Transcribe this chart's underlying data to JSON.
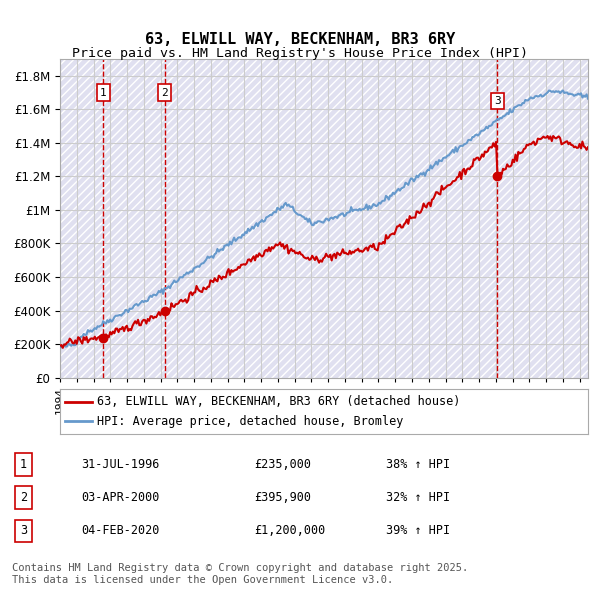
{
  "title": "63, ELWILL WAY, BECKENHAM, BR3 6RY",
  "subtitle": "Price paid vs. HM Land Registry's House Price Index (HPI)",
  "ylabel_ticks": [
    "£0",
    "£200K",
    "£400K",
    "£600K",
    "£800K",
    "£1M",
    "£1.2M",
    "£1.4M",
    "£1.6M",
    "£1.8M"
  ],
  "ytick_values": [
    0,
    200000,
    400000,
    600000,
    800000,
    1000000,
    1200000,
    1400000,
    1600000,
    1800000
  ],
  "ylim": [
    0,
    1900000
  ],
  "xlim_start": 1994.0,
  "xlim_end": 2025.5,
  "sale_dates": [
    1996.58,
    2000.25,
    2020.09
  ],
  "sale_prices": [
    235000,
    395900,
    1200000
  ],
  "sale_labels": [
    "1",
    "2",
    "3"
  ],
  "hpi_line_color": "#6699cc",
  "price_line_color": "#cc0000",
  "sale_marker_color": "#cc0000",
  "dashed_line_color": "#cc0000",
  "background_hatch_color": "#e8e8f5",
  "grid_color": "#cccccc",
  "legend1_label": "63, ELWILL WAY, BECKENHAM, BR3 6RY (detached house)",
  "legend2_label": "HPI: Average price, detached house, Bromley",
  "table_rows": [
    {
      "num": "1",
      "date": "31-JUL-1996",
      "price": "£235,000",
      "change": "38% ↑ HPI"
    },
    {
      "num": "2",
      "date": "03-APR-2000",
      "price": "£395,900",
      "change": "32% ↑ HPI"
    },
    {
      "num": "3",
      "date": "04-FEB-2020",
      "price": "£1,200,000",
      "change": "39% ↑ HPI"
    }
  ],
  "footnote": "Contains HM Land Registry data © Crown copyright and database right 2025.\nThis data is licensed under the Open Government Licence v3.0.",
  "title_fontsize": 11,
  "subtitle_fontsize": 9.5,
  "tick_fontsize": 8.5,
  "legend_fontsize": 8.5,
  "table_fontsize": 8.5,
  "footnote_fontsize": 7.5
}
